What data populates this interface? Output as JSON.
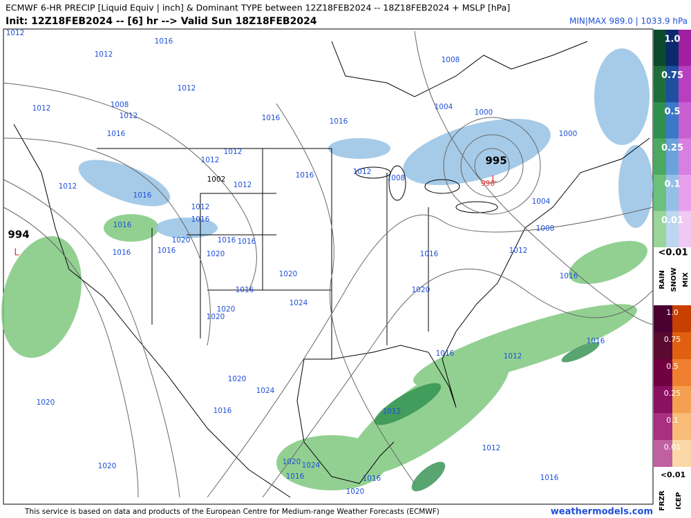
{
  "header": {
    "title": "ECMWF 6-HR PRECIP [Liquid Equiv | inch] & Dominant TYPE between 12Z18FEB2024 -- 18Z18FEB2024 + MSLP [hPa]",
    "init": "Init: 12Z18FEB2024 -- [6] hr --> Valid Sun 18Z18FEB2024",
    "minmax": "MIN|MAX 989.0 | 1033.9 hPa"
  },
  "map": {
    "isobar_labels": [
      1012,
      1012,
      1016,
      1012,
      1012,
      1008,
      1012,
      1016,
      1016,
      1016,
      1008,
      1004,
      1000,
      1000,
      1012,
      1016,
      1012,
      1012,
      1002,
      1012,
      1016,
      1012,
      1008,
      996,
      1004,
      1008,
      1012,
      1016,
      1016,
      1016,
      1020,
      1016,
      1016,
      1016,
      1020,
      1012,
      1016,
      1016,
      1020,
      1020,
      1016,
      1024,
      1020,
      1020,
      1016,
      1016,
      1012,
      1020,
      1024,
      1020,
      1016,
      1012,
      1012,
      1020,
      1020,
      1024,
      1016,
      1016,
      1016,
      1020
    ],
    "pressure_centers": [
      995,
      994
    ],
    "low_markers": [
      "L",
      "L"
    ]
  },
  "legend": {
    "rain_snow_levels": [
      "1.0",
      "0.75",
      "0.5",
      "0.25",
      "0.1",
      "0.01"
    ],
    "rain_snow_min": "<0.01",
    "rain_snow_types": [
      "RAIN",
      "SNOW",
      "MIX"
    ],
    "frzr_icep_levels": [
      "1.0",
      "0.75",
      "0.5",
      "0.25",
      "0.1",
      "0.01"
    ],
    "frzr_icep_min": "<0.01",
    "frzr_icep_types": [
      "FRZR",
      "ICEP"
    ]
  },
  "footer": {
    "credit": "This service is based on data and products of the European Centre for Medium-range Weather Forecasts (ECMWF)",
    "site": "weathermodels.com"
  }
}
